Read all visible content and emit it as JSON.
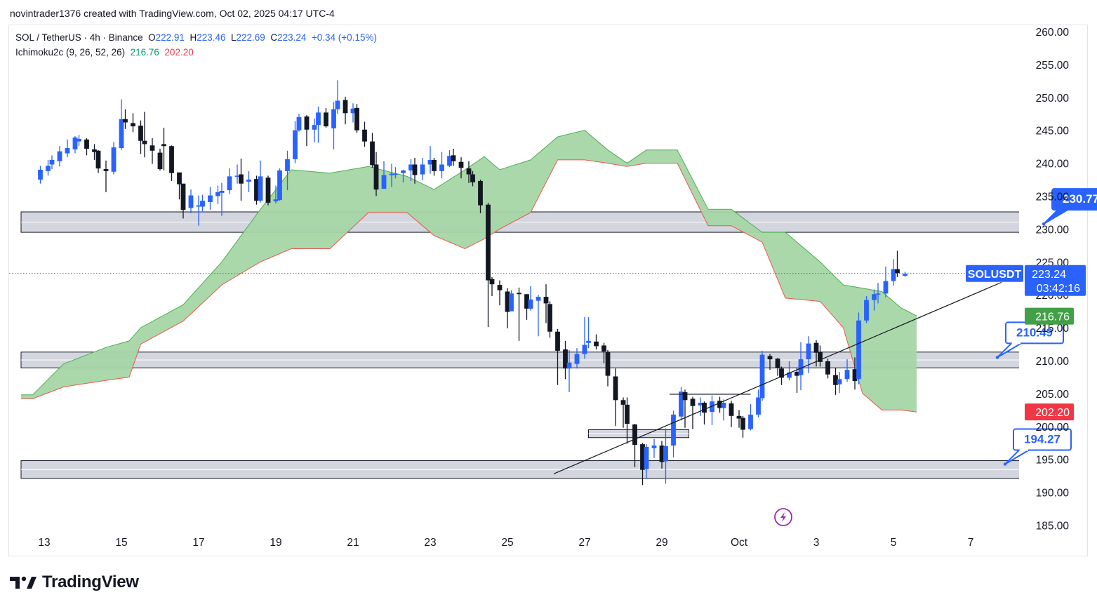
{
  "header": {
    "caption": "novintrader1376 created with TradingView.com, Oct 02, 2025 04:17 UTC-4"
  },
  "legend": {
    "symbol": "SOL / TetherUS · 4h · Binance",
    "o_label": "O",
    "o_value": "222.91",
    "h_label": "H",
    "h_value": "223.46",
    "l_label": "L",
    "l_value": "222.69",
    "c_label": "C",
    "c_value": "223.24",
    "change": "+0.34 (+0.15%)",
    "indicator": "Ichimoku2c (9, 26, 52, 26)",
    "ind_value1": "216.76",
    "ind_value2": "202.20"
  },
  "footer": {
    "brand": "TradingView"
  },
  "colors": {
    "up": "#2962ff",
    "down": "#131722",
    "cloud": "#a5d6a7",
    "cloud_edge_top": "#4caf50",
    "cloud_edge_bottom": "#ef5350",
    "zone_fill": "#d1d4dc",
    "label_blue": "#2962ff",
    "green_badge": "#43a047",
    "red_badge": "#f23645"
  },
  "chart_data": {
    "type": "candlestick",
    "symbol_tag": "SOLUSDT",
    "last_price": "223.24",
    "countdown": "03:42:16",
    "y_ticks": [
      "260.00",
      "255.00",
      "250.00",
      "245.00",
      "240.00",
      "235.00",
      "230.00",
      "225.00",
      "220.00",
      "215.00",
      "210.00",
      "205.00",
      "200.00",
      "195.00",
      "190.00",
      "185.00"
    ],
    "y_tick_values": [
      260,
      255,
      250,
      245,
      240,
      235,
      230,
      225,
      220,
      215,
      210,
      205,
      200,
      195,
      190,
      185
    ],
    "ylim": [
      184.6,
      261.9
    ],
    "x_ticks": [
      "13",
      "15",
      "17",
      "19",
      "21",
      "23",
      "25",
      "27",
      "29",
      "Oct",
      "3",
      "5",
      "7"
    ],
    "x_tick_days": [
      13,
      15,
      17,
      19,
      21,
      23,
      25,
      27,
      29,
      31,
      33,
      35,
      37
    ],
    "candles": [
      [
        12.9,
        237.5,
        239.0,
        239.6,
        236.9
      ],
      [
        13.1,
        238.8,
        239.6,
        240.5,
        238.1
      ],
      [
        13.2,
        239.8,
        240.5,
        241.2,
        239.1
      ],
      [
        13.4,
        240.3,
        241.8,
        242.6,
        239.5
      ],
      [
        13.6,
        241.5,
        242.3,
        243.6,
        240.9
      ],
      [
        13.8,
        242.1,
        243.9,
        244.1,
        241.5
      ],
      [
        13.9,
        243.3,
        243.7,
        244.3,
        242.6
      ],
      [
        14.1,
        243.6,
        242.2,
        243.8,
        241.2
      ],
      [
        14.3,
        242.1,
        241.7,
        242.9,
        240.5
      ],
      [
        14.4,
        241.9,
        239.2,
        242.0,
        238.5
      ],
      [
        14.6,
        239.1,
        238.8,
        240.4,
        235.6
      ],
      [
        14.8,
        238.7,
        242.4,
        243.2,
        238.3
      ],
      [
        15.0,
        242.3,
        246.7,
        249.7,
        242.0
      ],
      [
        15.1,
        246.7,
        246.2,
        248.2,
        245.2
      ],
      [
        15.3,
        246.1,
        245.6,
        247.6,
        244.7
      ],
      [
        15.5,
        245.7,
        243.4,
        246.5,
        241.4
      ],
      [
        15.6,
        243.4,
        242.9,
        247.8,
        240.9
      ],
      [
        15.8,
        242.7,
        241.9,
        243.8,
        239.9
      ],
      [
        16.0,
        241.6,
        239.1,
        242.2,
        238.9
      ],
      [
        16.1,
        242.9,
        242.6,
        245.4,
        238.9
      ],
      [
        16.3,
        242.6,
        238.5,
        242.7,
        237.3
      ],
      [
        16.5,
        238.6,
        236.8,
        237.6,
        234.5
      ],
      [
        16.6,
        236.9,
        232.9,
        236.7,
        231.6
      ],
      [
        16.8,
        233.2,
        235.1,
        236.0,
        232.4
      ],
      [
        17.0,
        233.4,
        233.6,
        235.1,
        230.5
      ],
      [
        17.1,
        233.4,
        234.3,
        235.2,
        232.7
      ],
      [
        17.3,
        234.1,
        235.1,
        236.4,
        232.9
      ],
      [
        17.5,
        235.0,
        235.6,
        236.6,
        233.8
      ],
      [
        17.6,
        235.5,
        235.8,
        237.0,
        232.0
      ],
      [
        17.8,
        235.9,
        238.0,
        239.2,
        235.3
      ],
      [
        18.0,
        238.0,
        238.1,
        239.8,
        236.9
      ],
      [
        18.1,
        238.3,
        236.9,
        240.7,
        234.3
      ],
      [
        18.3,
        237.2,
        237.5,
        238.8,
        235.6
      ],
      [
        18.5,
        237.6,
        234.3,
        238.1,
        233.7
      ],
      [
        18.6,
        234.3,
        238.0,
        240.4,
        234.0
      ],
      [
        18.8,
        237.8,
        234.0,
        238.1,
        233.6
      ],
      [
        19.0,
        234.2,
        234.5,
        236.6,
        233.9
      ],
      [
        19.1,
        234.4,
        238.9,
        239.2,
        234.3
      ],
      [
        19.3,
        238.8,
        240.6,
        241.9,
        235.9
      ],
      [
        19.5,
        240.6,
        245.0,
        246.4,
        240.0
      ],
      [
        19.6,
        245.0,
        247.0,
        247.5,
        244.8
      ],
      [
        19.8,
        247.1,
        245.1,
        247.3,
        242.6
      ],
      [
        20.0,
        245.1,
        245.8,
        246.8,
        243.2
      ],
      [
        20.1,
        245.8,
        247.7,
        248.6,
        243.1
      ],
      [
        20.3,
        247.7,
        245.6,
        248.4,
        245.4
      ],
      [
        20.5,
        245.3,
        248.2,
        249.3,
        242.1
      ],
      [
        20.6,
        248.2,
        249.5,
        252.6,
        247.5
      ],
      [
        20.8,
        249.6,
        247.6,
        250.1,
        245.9
      ],
      [
        21.0,
        247.6,
        248.3,
        249.1,
        246.2
      ],
      [
        21.1,
        248.4,
        245.0,
        249.0,
        244.6
      ],
      [
        21.3,
        245.1,
        243.3,
        246.3,
        242.5
      ],
      [
        21.5,
        243.3,
        239.7,
        244.6,
        239.3
      ],
      [
        21.6,
        239.8,
        236.0,
        241.7,
        235.0
      ],
      [
        21.8,
        236.1,
        238.2,
        240.3,
        236.6
      ],
      [
        22.0,
        238.2,
        238.4,
        239.9,
        236.4
      ],
      [
        22.1,
        238.4,
        238.4,
        239.4,
        237.7
      ],
      [
        22.3,
        238.5,
        238.9,
        239.0,
        237.1
      ],
      [
        22.5,
        238.9,
        239.8,
        240.6,
        237.3
      ],
      [
        22.6,
        239.8,
        238.2,
        240.8,
        236.9
      ],
      [
        22.8,
        238.3,
        239.8,
        240.8,
        237.4
      ],
      [
        23.0,
        239.8,
        240.5,
        242.6,
        238.4
      ],
      [
        23.1,
        240.5,
        238.8,
        240.8,
        238.1
      ],
      [
        23.3,
        238.8,
        239.8,
        241.7,
        237.7
      ],
      [
        23.5,
        239.6,
        241.1,
        242.0,
        239.4
      ],
      [
        23.6,
        241.2,
        240.3,
        242.2,
        239.6
      ],
      [
        23.8,
        240.2,
        239.3,
        240.9,
        237.7
      ],
      [
        24.0,
        239.2,
        238.3,
        240.3,
        237.0
      ],
      [
        24.1,
        238.3,
        237.1,
        238.8,
        236.5
      ],
      [
        24.3,
        237.3,
        233.6,
        237.5,
        232.4
      ],
      [
        24.5,
        233.7,
        222.2,
        234.0,
        215.1
      ],
      [
        24.6,
        222.4,
        221.6,
        222.7,
        219.8
      ],
      [
        24.8,
        221.5,
        220.7,
        222.2,
        218.4
      ],
      [
        25.0,
        220.5,
        217.4,
        221.0,
        214.9
      ],
      [
        25.1,
        217.5,
        220.2,
        220.7,
        217.5
      ],
      [
        25.3,
        220.3,
        220.1,
        221.1,
        213.0
      ],
      [
        25.5,
        220.1,
        217.9,
        220.1,
        216.2
      ],
      [
        25.6,
        217.9,
        219.3,
        221.3,
        217.6
      ],
      [
        25.8,
        219.1,
        219.7,
        220.0,
        213.7
      ],
      [
        26.0,
        219.7,
        218.7,
        221.6,
        215.7
      ],
      [
        26.1,
        218.6,
        214.4,
        219.0,
        213.5
      ],
      [
        26.3,
        214.4,
        211.5,
        214.8,
        206.3
      ],
      [
        26.5,
        211.7,
        208.8,
        213.0,
        207.2
      ],
      [
        26.6,
        208.8,
        209.7,
        211.6,
        205.2
      ],
      [
        26.8,
        209.5,
        211.0,
        211.9,
        208.8
      ],
      [
        27.0,
        211.0,
        212.4,
        216.6,
        210.3
      ],
      [
        27.1,
        212.7,
        213.0,
        216.6,
        211.9
      ],
      [
        27.3,
        212.9,
        212.2,
        214.0,
        211.7
      ],
      [
        27.5,
        212.3,
        211.4,
        212.7,
        209.6
      ],
      [
        27.6,
        211.3,
        207.7,
        211.6,
        206.1
      ],
      [
        27.8,
        207.6,
        204.0,
        208.8,
        200.1
      ],
      [
        28.0,
        204.0,
        203.3,
        204.4,
        199.8
      ],
      [
        28.1,
        203.3,
        200.4,
        204.4,
        197.4
      ],
      [
        28.3,
        200.3,
        197.2,
        200.4,
        193.8
      ],
      [
        28.5,
        197.3,
        193.4,
        197.5,
        191.1
      ],
      [
        28.6,
        193.5,
        196.9,
        197.3,
        192.0
      ],
      [
        28.8,
        196.7,
        197.1,
        198.1,
        195.2
      ],
      [
        29.0,
        197.1,
        194.6,
        197.8,
        193.6
      ],
      [
        29.1,
        194.7,
        197.0,
        199.7,
        191.3
      ],
      [
        29.3,
        197.1,
        201.8,
        202.4,
        195.3
      ],
      [
        29.5,
        201.5,
        205.3,
        206.0,
        200.9
      ],
      [
        29.6,
        205.2,
        204.0,
        205.6,
        199.8
      ],
      [
        29.8,
        204.2,
        203.1,
        204.5,
        199.6
      ],
      [
        30.0,
        203.2,
        203.6,
        204.4,
        201.6
      ],
      [
        30.1,
        203.6,
        202.1,
        203.8,
        200.3
      ],
      [
        30.3,
        202.2,
        203.8,
        204.7,
        200.2
      ],
      [
        30.5,
        203.9,
        202.8,
        204.5,
        202.1
      ],
      [
        30.6,
        202.8,
        203.6,
        204.1,
        200.9
      ],
      [
        30.8,
        203.5,
        201.6,
        203.9,
        199.9
      ],
      [
        31.0,
        201.6,
        201.2,
        202.5,
        199.8
      ],
      [
        31.1,
        201.3,
        199.5,
        201.6,
        198.3
      ],
      [
        31.3,
        199.6,
        201.8,
        203.4,
        199.4
      ],
      [
        31.5,
        201.8,
        204.4,
        205.6,
        201.4
      ],
      [
        31.6,
        204.3,
        210.9,
        211.5,
        203.9
      ],
      [
        31.8,
        210.7,
        210.2,
        211.0,
        208.6
      ],
      [
        32.0,
        210.3,
        208.9,
        210.4,
        207.7
      ],
      [
        32.1,
        208.8,
        207.4,
        209.1,
        206.3
      ],
      [
        32.3,
        207.4,
        208.2,
        209.9,
        207.0
      ],
      [
        32.5,
        208.3,
        207.7,
        208.9,
        205.1
      ],
      [
        32.6,
        207.8,
        210.2,
        212.8,
        205.5
      ],
      [
        32.8,
        210.2,
        212.6,
        213.7,
        208.1
      ],
      [
        33.0,
        212.7,
        211.2,
        213.1,
        209.1
      ],
      [
        33.1,
        211.3,
        209.8,
        212.3,
        209.1
      ],
      [
        33.3,
        209.9,
        207.9,
        210.3,
        207.3
      ],
      [
        33.5,
        207.8,
        206.3,
        208.9,
        204.8
      ],
      [
        33.6,
        206.4,
        207.2,
        208.3,
        205.1
      ],
      [
        33.8,
        207.2,
        208.6,
        210.2,
        206.8
      ],
      [
        34.0,
        208.7,
        206.9,
        210.5,
        205.6
      ],
      [
        34.1,
        207.2,
        216.1,
        217.3,
        206.4
      ],
      [
        34.3,
        216.1,
        219.2,
        219.8,
        215.7
      ],
      [
        34.5,
        219.2,
        220.1,
        220.8,
        217.6
      ],
      [
        34.6,
        220.1,
        220.2,
        221.8,
        218.7
      ],
      [
        34.8,
        220.2,
        222.1,
        224.3,
        219.6
      ],
      [
        35.0,
        222.1,
        223.9,
        225.4,
        221.4
      ],
      [
        35.1,
        223.9,
        223.3,
        226.7,
        222.7
      ],
      [
        35.3,
        222.9,
        223.2,
        223.5,
        222.7
      ]
    ],
    "ichimoku_cloud": {
      "x": [
        12.4,
        12.7,
        13.5,
        14.6,
        15.2,
        15.5,
        16.6,
        17.6,
        18.6,
        19.4,
        20.4,
        21.4,
        22.4,
        23.1,
        23.9,
        24.4,
        24.8,
        25.6,
        26.3,
        27.0,
        27.6,
        28.1,
        28.6,
        29.4,
        30.2,
        30.8,
        31.6,
        32.2,
        33.1,
        33.7,
        34.2,
        34.7,
        35.2,
        35.6
      ],
      "span_a": [
        204.8,
        204.8,
        209.5,
        212.0,
        213.0,
        215.0,
        218.5,
        225.0,
        233.0,
        239.0,
        238.5,
        239.5,
        238.0,
        236.0,
        239.0,
        241.0,
        239.0,
        240.5,
        244.0,
        245.0,
        242.0,
        240.0,
        242.0,
        242.0,
        233.0,
        233.0,
        229.5,
        229.5,
        225.0,
        221.5,
        221.0,
        220.5,
        218.0,
        216.8
      ],
      "span_b": [
        204.2,
        204.2,
        206.0,
        207.0,
        207.5,
        212.5,
        216.0,
        221.5,
        225.0,
        227.0,
        227.0,
        232.5,
        232.5,
        229.0,
        227.0,
        228.5,
        230.0,
        232.5,
        240.5,
        240.5,
        240.0,
        239.5,
        240.0,
        240.0,
        230.5,
        230.5,
        228.0,
        219.5,
        219.0,
        215.0,
        205.0,
        202.5,
        202.5,
        202.2
      ]
    },
    "zones": [
      {
        "x0": 12.4,
        "x1": 39.5,
        "y0": 229.5,
        "y1": 232.6
      },
      {
        "x0": 12.4,
        "x1": 38.6,
        "y0": 208.9,
        "y1": 211.3
      },
      {
        "x0": 12.4,
        "x1": 38.6,
        "y0": 192.1,
        "y1": 194.8
      },
      {
        "x0": 27.1,
        "x1": 29.7,
        "y0": 198.3,
        "y1": 199.5
      }
    ],
    "trendlines": [
      {
        "x0": 26.2,
        "y0": 192.8,
        "x1": 37.8,
        "y1": 221.9
      },
      {
        "x0": 29.2,
        "y0": 204.9,
        "x1": 31.3,
        "y1": 204.9
      }
    ],
    "price_labels": [
      {
        "text": "230.77",
        "x": 39.4,
        "y": 230.77,
        "filled": true
      },
      {
        "text": "210.49",
        "x": 38.2,
        "y": 210.49,
        "filled": false
      },
      {
        "text": "194.27",
        "x": 38.4,
        "y": 194.27,
        "filled": false
      }
    ],
    "axis_badges": [
      {
        "text": "216.76",
        "y": 216.76
      },
      {
        "text": "202.20",
        "y": 202.2
      }
    ]
  }
}
